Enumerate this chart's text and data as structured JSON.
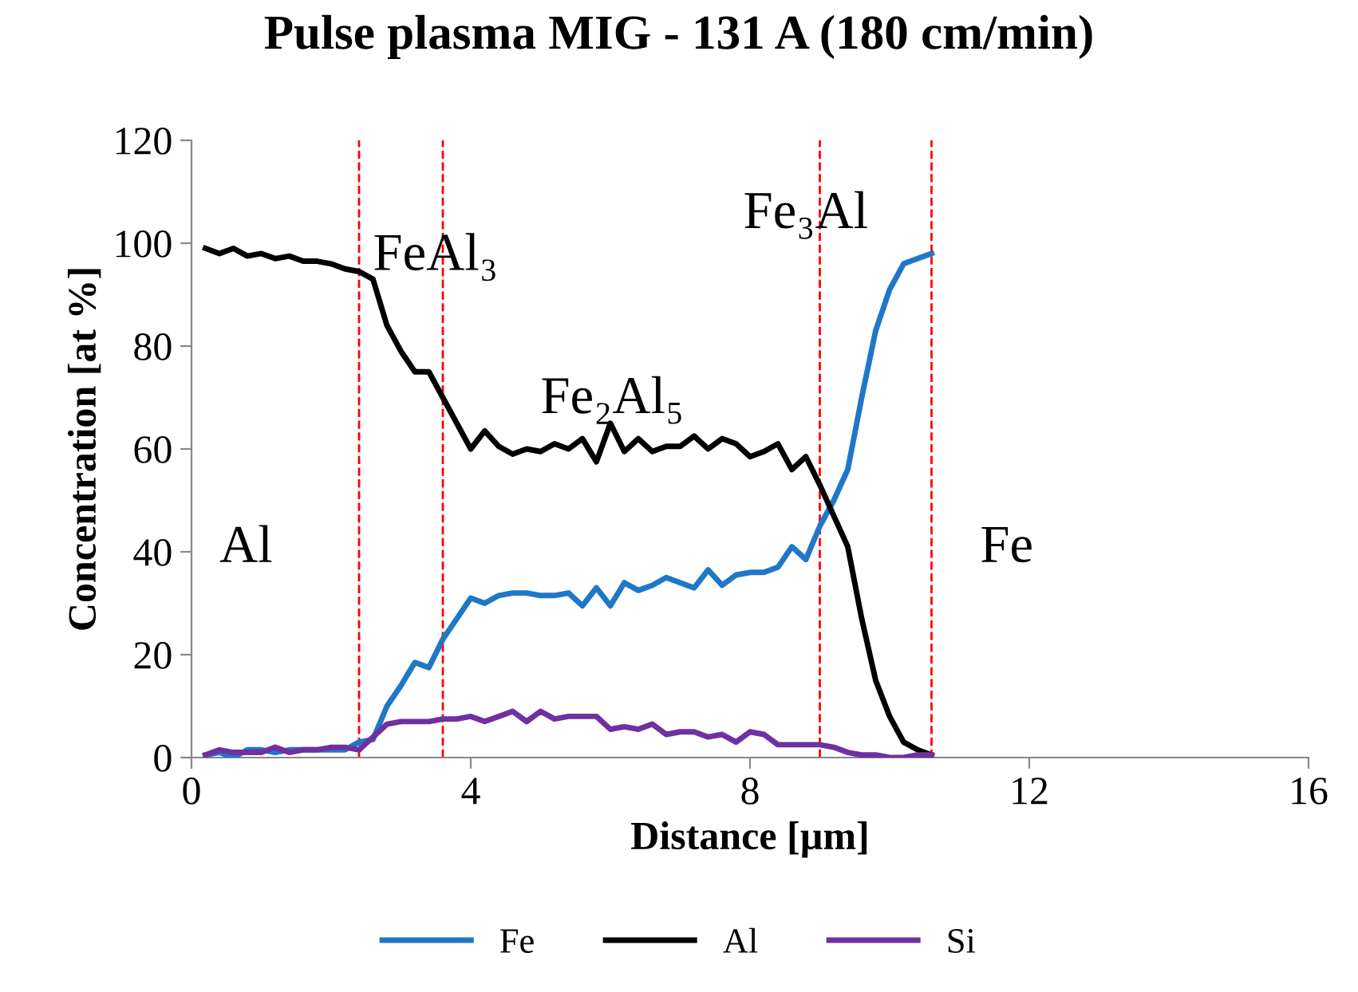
{
  "chart_data": {
    "type": "line",
    "title": "Pulse plasma MIG - 131 A (180 cm/min)",
    "xlabel": "Distance [µm]",
    "ylabel": "Concentration [at %]",
    "x": [
      0.2,
      0.4,
      0.6,
      0.8,
      1.0,
      1.2,
      1.4,
      1.6,
      1.8,
      2.0,
      2.2,
      2.4,
      2.6,
      2.8,
      3.0,
      3.2,
      3.4,
      3.6,
      3.8,
      4.0,
      4.2,
      4.4,
      4.6,
      4.8,
      5.0,
      5.2,
      5.4,
      5.6,
      5.8,
      6.0,
      6.2,
      6.4,
      6.6,
      6.8,
      7.0,
      7.2,
      7.4,
      7.6,
      7.8,
      8.0,
      8.2,
      8.4,
      8.6,
      8.8,
      9.0,
      9.2,
      9.4,
      9.6,
      9.8,
      10.0,
      10.2,
      10.4,
      10.6
    ],
    "series": [
      {
        "name": "Fe",
        "color": "#1f77c8",
        "values": [
          0.5,
          1,
          0,
          1.5,
          1.5,
          1,
          1.5,
          1.5,
          1.5,
          1.5,
          1.5,
          3,
          3.5,
          10,
          14,
          18.5,
          17.5,
          23,
          27,
          31,
          30,
          31.5,
          32,
          32,
          31.5,
          31.5,
          32,
          29.5,
          33,
          29.5,
          34,
          32.5,
          33.5,
          35,
          34,
          33,
          36.5,
          33.5,
          35.5,
          36,
          36,
          37,
          41,
          38.5,
          45,
          50,
          56,
          70,
          83,
          91,
          96,
          97,
          98
        ]
      },
      {
        "name": "Al",
        "color": "#000000",
        "values": [
          99,
          98,
          99,
          97.5,
          98,
          97,
          97.5,
          96.5,
          96.5,
          96,
          95,
          94.5,
          93,
          84,
          79,
          75,
          75,
          70,
          65,
          60,
          63.5,
          60.5,
          59,
          60,
          59.5,
          61,
          60,
          62,
          57.5,
          65,
          59.5,
          62,
          59.5,
          60.5,
          60.5,
          62.5,
          60,
          62,
          61,
          58.5,
          59.5,
          61,
          56,
          58.5,
          53,
          47,
          41,
          27,
          15,
          8,
          3,
          1.5,
          0.5
        ]
      },
      {
        "name": "Si",
        "color": "#7030a0",
        "values": [
          0.5,
          1.5,
          1,
          1,
          1,
          2,
          1,
          1.5,
          1.5,
          2,
          2,
          1.5,
          4,
          6.5,
          7,
          7,
          7,
          7.5,
          7.5,
          8,
          7,
          8,
          9,
          7,
          9,
          7.5,
          8,
          8,
          8,
          5.5,
          6,
          5.5,
          6.5,
          4.5,
          5,
          5,
          4,
          4.5,
          3,
          5,
          4.5,
          2.5,
          2.5,
          2.5,
          2.5,
          2,
          1,
          0.5,
          0.5,
          0,
          0,
          0.5,
          0.5
        ]
      }
    ],
    "xlim": [
      0,
      16
    ],
    "xticks": [
      0,
      4,
      8,
      12,
      16
    ],
    "ylim": [
      0,
      120
    ],
    "yticks": [
      0,
      20,
      40,
      60,
      80,
      100,
      120
    ],
    "ref_lines": [
      {
        "axis": "x",
        "value": 2.4,
        "color": "#ff0000",
        "line_style": "dashed"
      },
      {
        "axis": "x",
        "value": 3.6,
        "color": "#ff0000",
        "line_style": "dashed"
      },
      {
        "axis": "x",
        "value": 9.0,
        "color": "#ff0000",
        "line_style": "dashed"
      },
      {
        "axis": "x",
        "value": 10.6,
        "color": "#ff0000",
        "line_style": "dashed"
      }
    ],
    "annotations": [
      "Al",
      "FeAl₃",
      "Fe₂Al₅",
      "Fe₃Al",
      "Fe"
    ],
    "grid": false,
    "legend": "bottom",
    "marker": "none",
    "line_style": "solid"
  }
}
